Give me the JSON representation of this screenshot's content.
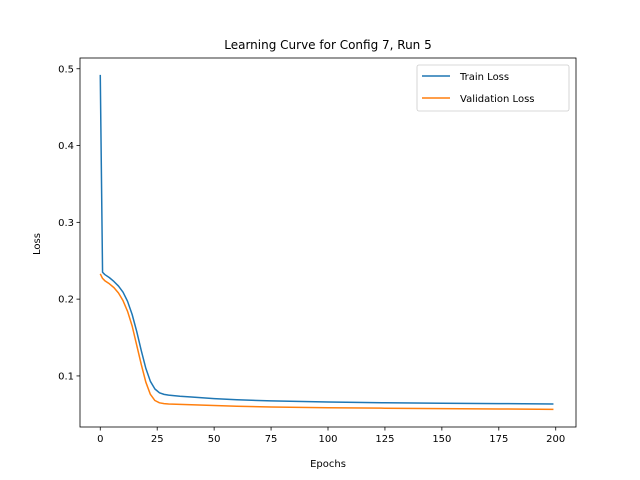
{
  "chart_data": {
    "type": "line",
    "title": "Learning Curve for Config 7, Run 5",
    "xlabel": "Epochs",
    "ylabel": "Loss",
    "xlim": [
      -8.9,
      208.9
    ],
    "ylim": [
      0.0335,
      0.514
    ],
    "xticks": [
      0,
      25,
      50,
      75,
      100,
      125,
      150,
      175,
      200
    ],
    "yticks": [
      0.1,
      0.2,
      0.3,
      0.4,
      0.5
    ],
    "ytick_labels": [
      "0.1",
      "0.2",
      "0.3",
      "0.4",
      "0.5"
    ],
    "grid": false,
    "legend_position": "top-right",
    "series": [
      {
        "name": "Train Loss",
        "color": "#1f77b4",
        "x": [
          0,
          1,
          2,
          4,
          6,
          8,
          10,
          12,
          14,
          16,
          18,
          20,
          22,
          24,
          26,
          28,
          30,
          35,
          40,
          50,
          60,
          75,
          100,
          125,
          150,
          175,
          199
        ],
        "y": [
          0.492,
          0.235,
          0.232,
          0.228,
          0.223,
          0.217,
          0.209,
          0.197,
          0.18,
          0.158,
          0.133,
          0.11,
          0.093,
          0.083,
          0.078,
          0.076,
          0.075,
          0.0735,
          0.0725,
          0.0705,
          0.069,
          0.0675,
          0.066,
          0.065,
          0.0645,
          0.064,
          0.0635
        ]
      },
      {
        "name": "Validation Loss",
        "color": "#ff7f0e",
        "x": [
          0,
          1,
          2,
          4,
          6,
          8,
          10,
          12,
          14,
          16,
          18,
          20,
          22,
          24,
          26,
          28,
          30,
          35,
          40,
          50,
          60,
          75,
          100,
          125,
          150,
          175,
          199
        ],
        "y": [
          0.233,
          0.227,
          0.224,
          0.22,
          0.215,
          0.208,
          0.198,
          0.184,
          0.165,
          0.14,
          0.115,
          0.092,
          0.076,
          0.068,
          0.065,
          0.064,
          0.0635,
          0.063,
          0.0625,
          0.0615,
          0.0605,
          0.0595,
          0.0585,
          0.058,
          0.0575,
          0.057,
          0.0565
        ]
      }
    ]
  }
}
